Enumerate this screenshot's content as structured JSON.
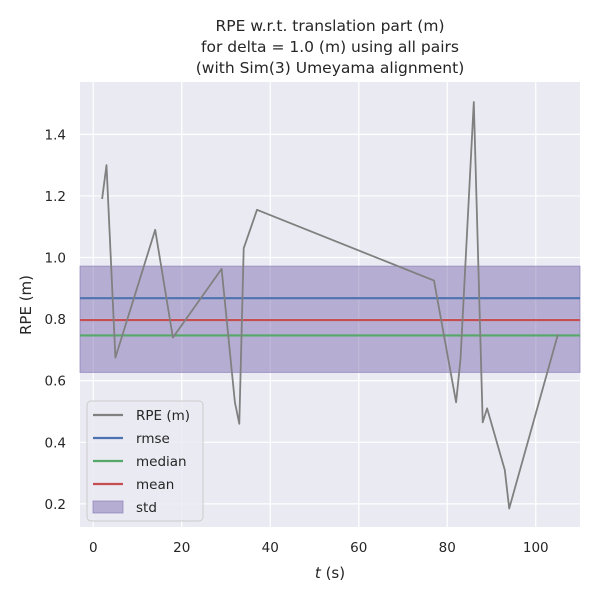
{
  "chart_data": {
    "type": "line",
    "title_lines": [
      "RPE w.r.t. translation part (m)",
      "for delta = 1.0 (m) using all pairs",
      "(with Sim(3) Umeyama alignment)"
    ],
    "xlabel_italic": "t",
    "xlabel_unit": " (s)",
    "ylabel": "RPE (m)",
    "xlim": [
      -3,
      110
    ],
    "ylim": [
      0.125,
      1.57
    ],
    "xticks": [
      0,
      20,
      40,
      60,
      80,
      100
    ],
    "yticks": [
      0.2,
      0.4,
      0.6,
      0.8,
      1.0,
      1.2,
      1.4
    ],
    "ytick_labels": [
      "0.2",
      "0.4",
      "0.6",
      "0.8",
      "1.0",
      "1.2",
      "1.4"
    ],
    "grid": true,
    "legend_position": "lower-left",
    "series": [
      {
        "name": "RPE (m)",
        "color": "#808080",
        "x": [
          2,
          3,
          5,
          14,
          18,
          29,
          32,
          33,
          34,
          37,
          77,
          82,
          83,
          86,
          88,
          89,
          93,
          94,
          105
        ],
        "y": [
          1.19,
          1.3,
          0.675,
          1.09,
          0.74,
          0.963,
          0.53,
          0.46,
          1.03,
          1.155,
          0.925,
          0.53,
          0.67,
          1.505,
          0.465,
          0.51,
          0.31,
          0.185,
          0.75
        ]
      }
    ],
    "stats": {
      "rmse": 0.868,
      "median": 0.747,
      "mean": 0.797,
      "std_band": [
        0.627,
        0.972
      ]
    },
    "legend": [
      {
        "label": "RPE (m)",
        "kind": "line",
        "color": "#808080"
      },
      {
        "label": "rmse",
        "kind": "line",
        "color": "#4c72b0"
      },
      {
        "label": "median",
        "kind": "line",
        "color": "#55a868"
      },
      {
        "label": "mean",
        "kind": "line",
        "color": "#c44e52"
      },
      {
        "label": "std",
        "kind": "patch",
        "color": "#8172b2"
      }
    ],
    "colors": {
      "background": "#eaeaf2",
      "grid": "#ffffff",
      "rmse": "#4c72b0",
      "median": "#55a868",
      "mean": "#c44e52",
      "std": "#8172b2"
    }
  }
}
